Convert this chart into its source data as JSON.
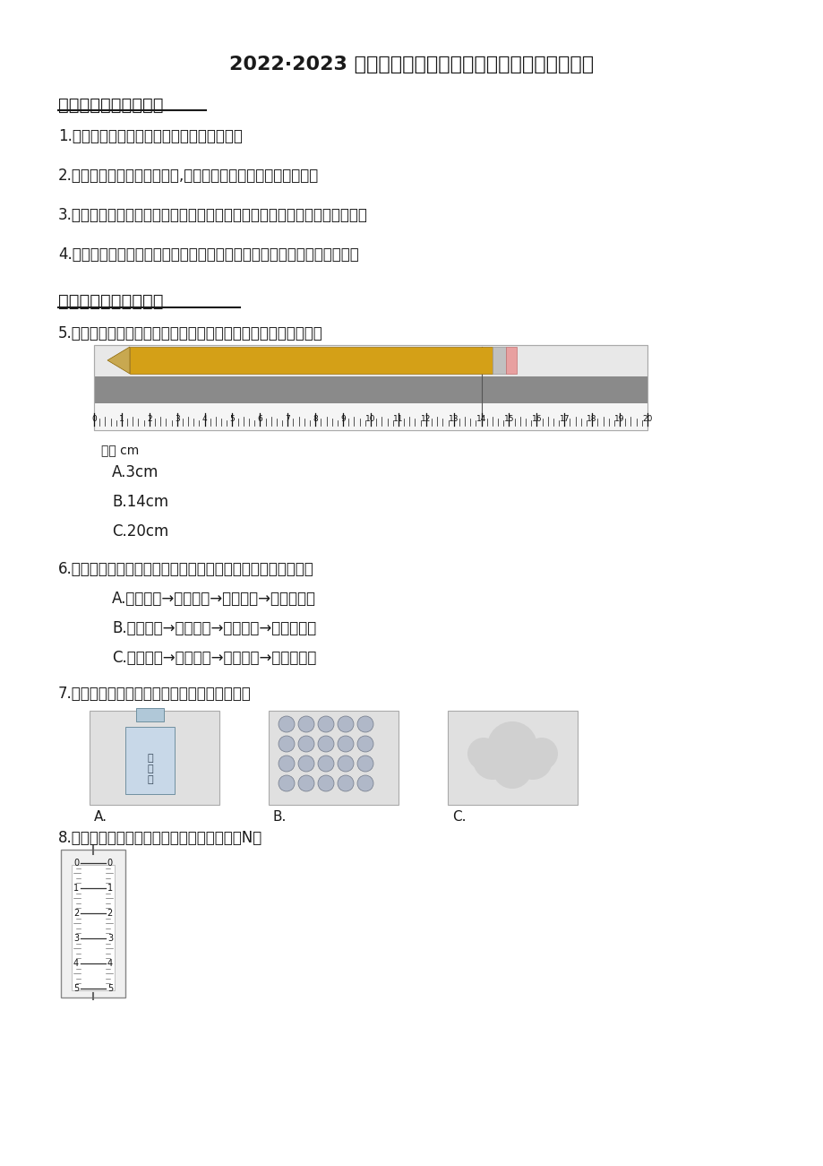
{
  "bg_color": "#ffffff",
  "title": "2022·2023 学年山西省阳泉市三年级（上）期末科学试卷",
  "section1_title": "一、认真思考巧填空。",
  "section2_title": "二、正确答案我会选。",
  "item1": "1.（３分）物体占据空间的大小叫做物体的。",
  "item2": "2.（３分）测量温度的仪器是,温度的常用单位可用符号表示为。",
  "item3": "3.（３分）在冬季地面结冰时，汽车轮胎上加防滑钉是为了增加轮胎和地面的",
  "item4": "4.（３分）当物体放入水中时，它就受到了水对它向上托起的力，这就是。",
  "q5_text": "5.（３分）观察如图所示刻度尺，它的最大量程是。铅笔的长度是",
  "q5_A": "A.3cm",
  "q5_B": "B.14cm",
  "q5_C": "C.20cm",
  "q6_text": "6.（３分）废旧塑料回收利用，再生产成衣服的过程是（　　）",
  "q6_A": "A.高温熳化→制成纤维→切成碎片→制成统织品",
  "q6_B": "B.切成碎片→制成纤维→高温熳化→制成统织品",
  "q6_C": "C.切成碎片→高温熳化→制成纤维→制成统织品",
  "q7_text": "7.（３分）下列物体中，属于液体的是（　　）",
  "q7_A": "A.",
  "q7_B": "B.",
  "q7_C": "C.",
  "q8_text": "8.（３分）如图弹簧测力计的读数是（　　）N。"
}
